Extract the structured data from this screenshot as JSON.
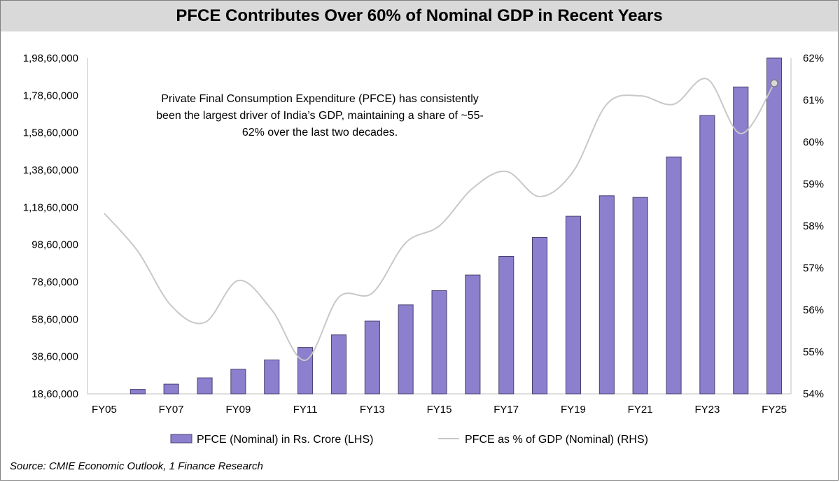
{
  "chart_data": {
    "type": "bar",
    "title": "PFCE Contributes Over 60% of Nominal GDP in Recent Years",
    "annotation": "Private Final Consumption Expenditure (PFCE) has consistently been the largest driver of India’s GDP, maintaining a share of ~55-62% over the last two decades.",
    "source": "Source: CMIE Economic Outlook, 1 Finance Research",
    "categories": [
      "FY05",
      "FY06",
      "FY07",
      "FY08",
      "FY09",
      "FY10",
      "FY11",
      "FY12",
      "FY13",
      "FY14",
      "FY15",
      "FY16",
      "FY17",
      "FY18",
      "FY19",
      "FY20",
      "FY21",
      "FY22",
      "FY23",
      "FY24",
      "FY25"
    ],
    "x_tick_labels": [
      "FY05",
      "FY07",
      "FY09",
      "FY11",
      "FY13",
      "FY15",
      "FY17",
      "FY19",
      "FY21",
      "FY23",
      "FY25"
    ],
    "series": [
      {
        "name": "PFCE (Nominal) in Rs. Crore (LHS)",
        "type": "bar",
        "axis": "left",
        "color": "#8b7fce",
        "values": [
          1860000,
          2100000,
          2380000,
          2720000,
          3180000,
          3680000,
          4350000,
          5020000,
          5760000,
          6630000,
          7390000,
          8230000,
          9230000,
          10240000,
          11380000,
          12480000,
          12390000,
          14560000,
          16780000,
          18310000,
          20140000
        ]
      },
      {
        "name": "PFCE as % of GDP (Nominal) (RHS)",
        "type": "line",
        "axis": "right",
        "color": "#c8c8c8",
        "values": [
          58.3,
          57.4,
          56.1,
          55.7,
          56.7,
          56.0,
          54.8,
          56.3,
          56.4,
          57.6,
          58.0,
          58.9,
          59.3,
          58.7,
          59.3,
          60.9,
          61.1,
          60.9,
          61.5,
          60.2,
          61.4
        ]
      }
    ],
    "y_left": {
      "min": 1860000,
      "max": 19860000,
      "step": 2000000,
      "tick_labels": [
        "18,60,000",
        "38,60,000",
        "58,60,000",
        "78,60,000",
        "98,60,000",
        "1,18,60,000",
        "1,38,60,000",
        "1,58,60,000",
        "1,78,60,000",
        "1,98,60,000"
      ]
    },
    "y_right": {
      "min": 54,
      "max": 62,
      "step": 1,
      "tick_labels": [
        "54%",
        "55%",
        "56%",
        "57%",
        "58%",
        "59%",
        "60%",
        "61%",
        "62%"
      ]
    },
    "legend_position": "bottom-center"
  }
}
